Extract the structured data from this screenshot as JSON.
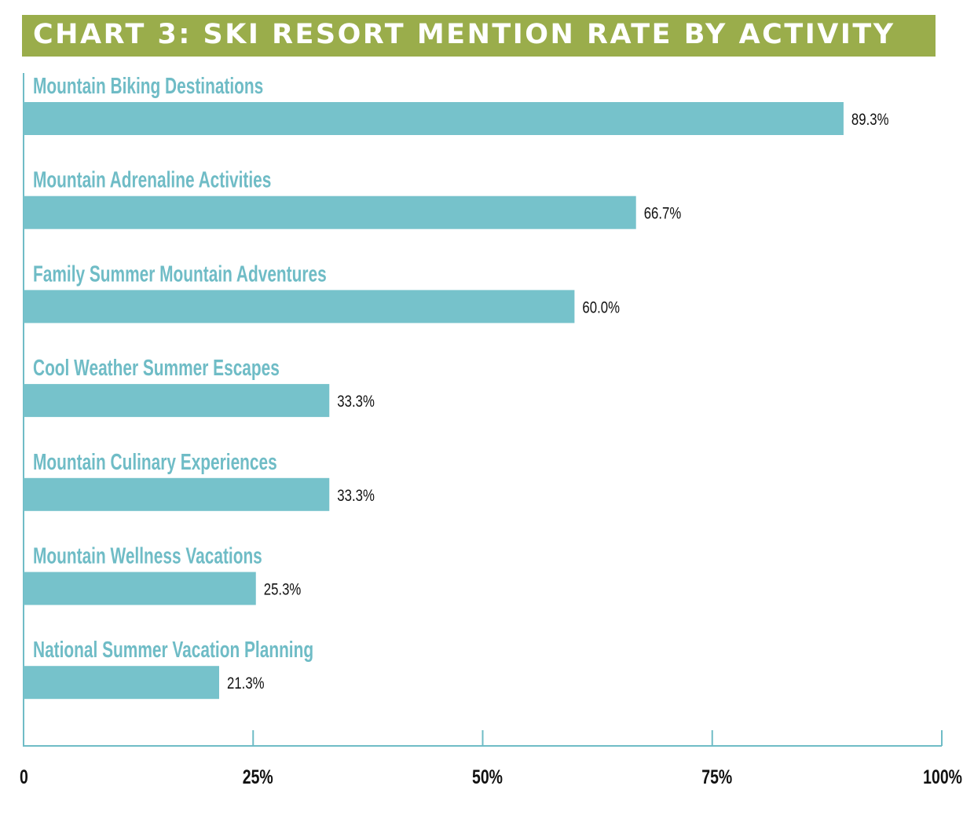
{
  "title": "CHART 3: SKI RESORT MENTION RATE BY ACTIVITY",
  "colors": {
    "banner": "#9aad4b",
    "bar": "#76c2cb",
    "category_label": "#6fbcc6",
    "axis": "#6fbcc6",
    "value_label": "#111111",
    "tick_label": "#111111"
  },
  "chart_data": {
    "type": "bar",
    "orientation": "horizontal",
    "title": "CHART 3: SKI RESORT MENTION RATE BY ACTIVITY",
    "categories": [
      "Mountain Biking Destinations",
      "Mountain Adrenaline Activities",
      "Family Summer Mountain Adventures",
      "Cool Weather Summer Escapes",
      "Mountain Culinary Experiences",
      "Mountain Wellness Vacations",
      "National Summer Vacation Planning"
    ],
    "values": [
      89.3,
      66.7,
      60.0,
      33.3,
      33.3,
      25.3,
      21.3
    ],
    "value_labels": [
      "89.3%",
      "66.7%",
      "60.0%",
      "33.3%",
      "33.3%",
      "25.3%",
      "21.3%"
    ],
    "xlim": [
      0,
      100
    ],
    "x_ticks": [
      0,
      25,
      50,
      75,
      100
    ],
    "x_tick_labels": [
      "0",
      "25%",
      "50%",
      "75%",
      "100%"
    ],
    "xlabel": "",
    "ylabel": "",
    "grid": false,
    "legend": "none"
  }
}
